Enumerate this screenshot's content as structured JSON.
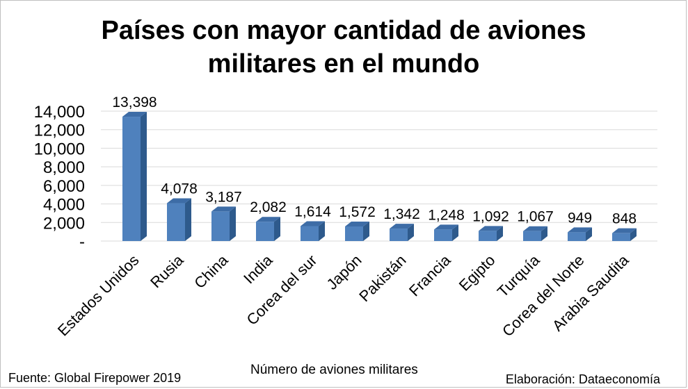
{
  "chart_data": {
    "type": "bar",
    "title_lines": [
      "Países con mayor cantidad de aviones",
      "militares en el mundo"
    ],
    "xlabel": "Número de aviones militares",
    "ylabel": "",
    "categories": [
      "Estados Unidos",
      "Rusia",
      "China",
      "India",
      "Corea del sur",
      "Japón",
      "Pakistán",
      "Francia",
      "Egipto",
      "Turquía",
      "Corea del Norte",
      "Arabia Saudita"
    ],
    "values": [
      13398,
      4078,
      3187,
      2082,
      1614,
      1572,
      1342,
      1248,
      1092,
      1067,
      949,
      848
    ],
    "value_labels": [
      "13,398",
      "4,078",
      "3,187",
      "2,082",
      "1,614",
      "1,572",
      "1,342",
      "1,248",
      "1,092",
      "1,067",
      "949",
      "848"
    ],
    "yticks": [
      0,
      2000,
      4000,
      6000,
      8000,
      10000,
      12000,
      14000
    ],
    "ytick_labels": [
      "-",
      "2,000",
      "4,000",
      "6,000",
      "8,000",
      "10,000",
      "12,000",
      "14,000"
    ],
    "ylim": [
      0,
      14000
    ],
    "grid": true,
    "style": "3d-column",
    "bar_color": "#4f81bd"
  },
  "footer": {
    "source": "Fuente: Global Firepower 2019",
    "credit": "Elaboración: Dataeconomía"
  }
}
